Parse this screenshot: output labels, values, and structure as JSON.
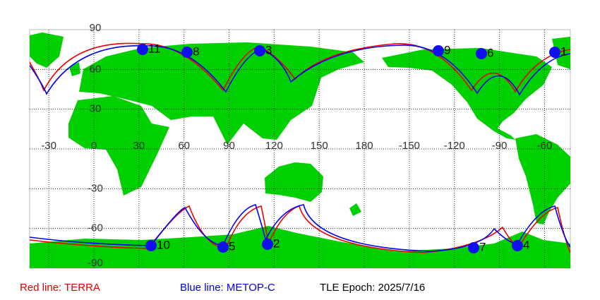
{
  "map": {
    "lat_labels": [
      90,
      60,
      30,
      -30,
      -60,
      -90
    ],
    "lon_labels": [
      -30,
      0,
      30,
      60,
      90,
      120,
      150,
      180,
      -150,
      -120,
      -90,
      -60
    ],
    "points": [
      "1",
      "2",
      "3",
      "4",
      "5",
      "6",
      "7",
      "8",
      "9",
      "10",
      "11"
    ]
  },
  "legend": {
    "terra": "Red line: TERRA",
    "metop": "Blue line: METOP-C",
    "epoch": "TLE Epoch: 2025/7/16"
  }
}
